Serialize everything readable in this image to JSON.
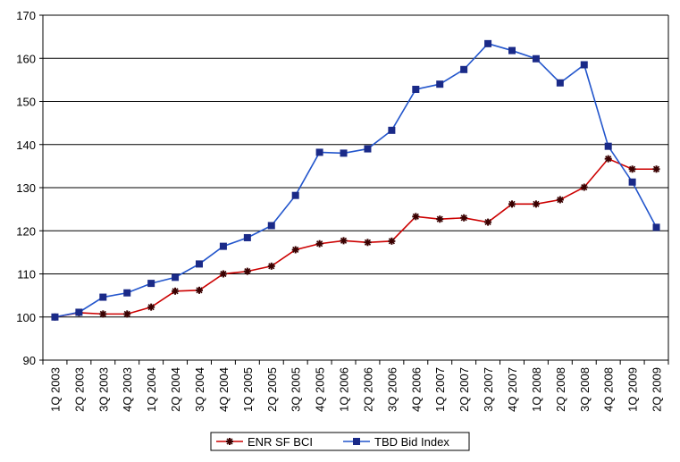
{
  "chart_data": {
    "type": "line",
    "title": "",
    "xlabel": "",
    "ylabel": "",
    "ylim": [
      90,
      170
    ],
    "yticks": [
      90,
      100,
      110,
      120,
      130,
      140,
      150,
      160,
      170
    ],
    "grid": "horizontal",
    "legend_position": "bottom",
    "categories": [
      "1Q 2003",
      "2Q 2003",
      "3Q 2003",
      "4Q 2003",
      "1Q 2004",
      "2Q 2004",
      "3Q 2004",
      "4Q 2004",
      "1Q 2005",
      "2Q 2005",
      "3Q 2005",
      "4Q 2005",
      "1Q 2006",
      "2Q 2006",
      "3Q 2006",
      "4Q 2006",
      "1Q 2007",
      "2Q 2007",
      "3Q 2007",
      "4Q 2007",
      "1Q 2008",
      "2Q 2008",
      "3Q 2008",
      "4Q 2008",
      "1Q 2009",
      "2Q 2009"
    ],
    "series": [
      {
        "name": "ENR SF BCI",
        "color": "#cc0000",
        "marker": "star",
        "values": [
          100,
          101,
          100.7,
          100.7,
          102.3,
          106,
          106.2,
          110,
          110.6,
          111.8,
          115.6,
          117,
          117.7,
          117.3,
          117.6,
          123.3,
          122.7,
          123,
          122,
          126.2,
          126.2,
          127.2,
          130.1,
          136.7,
          134.3,
          134.3
        ]
      },
      {
        "name": "TBD Bid Index",
        "color": "#2255cc",
        "marker": "square",
        "values": [
          100,
          101.1,
          104.6,
          105.6,
          107.8,
          109.2,
          112.3,
          116.4,
          118.4,
          121.2,
          128.2,
          138.2,
          138,
          139,
          143.3,
          152.8,
          154,
          157.4,
          163.4,
          161.8,
          159.9,
          154.3,
          158.5,
          139.6,
          131.3,
          120.8
        ]
      }
    ]
  }
}
